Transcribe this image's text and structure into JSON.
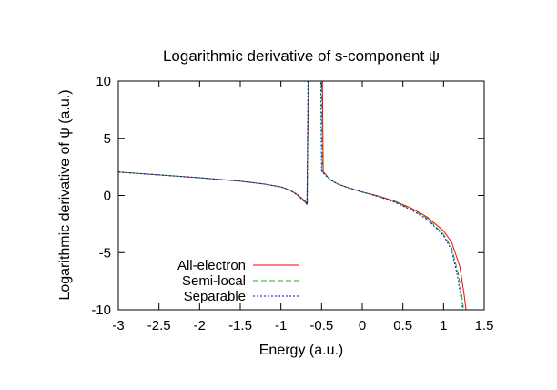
{
  "chart_data": {
    "type": "line",
    "title": "Logarithmic derivative of s-component ψ",
    "xlabel": "Energy (a.u.)",
    "ylabel": "Logarithmic derivative of ψ (a.u.)",
    "xlim": [
      -3,
      1.5
    ],
    "ylim": [
      -10,
      10
    ],
    "x_ticks": [
      -3,
      -2.5,
      -2,
      -1.5,
      -1,
      -0.5,
      0,
      0.5,
      1,
      1.5
    ],
    "y_ticks": [
      -10,
      -5,
      0,
      5,
      10
    ],
    "x_tick_labels": [
      "-3",
      "-2.5",
      "-2",
      "-1.5",
      "-1",
      "-0.5",
      "0",
      "0.5",
      "1",
      "1.5"
    ],
    "y_tick_labels": [
      "-10",
      "-5",
      "0",
      "5",
      "10"
    ],
    "grid": false,
    "legend_position": "bottom-left",
    "series": [
      {
        "name": "All-electron",
        "color": "#ff0000",
        "dash": "solid",
        "segments": [
          [
            [
              -3,
              2.05
            ],
            [
              -2.5,
              1.8
            ],
            [
              -2,
              1.55
            ],
            [
              -1.5,
              1.25
            ],
            [
              -1.2,
              1.0
            ],
            [
              -1.0,
              0.75
            ],
            [
              -0.9,
              0.5
            ],
            [
              -0.8,
              0.1
            ],
            [
              -0.7,
              -0.5
            ],
            [
              -0.68,
              -0.75
            ],
            [
              -0.66,
              10.2
            ]
          ],
          [
            [
              -0.49,
              10.2
            ],
            [
              -0.48,
              2.1
            ],
            [
              -0.4,
              1.4
            ],
            [
              -0.3,
              1.0
            ],
            [
              -0.2,
              0.75
            ],
            [
              0,
              0.3
            ],
            [
              0.2,
              -0.05
            ],
            [
              0.4,
              -0.5
            ],
            [
              0.6,
              -1.1
            ],
            [
              0.8,
              -1.9
            ],
            [
              1.0,
              -3.1
            ],
            [
              1.1,
              -4.1
            ],
            [
              1.2,
              -6.2
            ],
            [
              1.25,
              -8.5
            ],
            [
              1.28,
              -10.2
            ]
          ]
        ]
      },
      {
        "name": "Semi-local",
        "color": "#00c000",
        "dash": "dashed",
        "segments": [
          [
            [
              -3,
              2.05
            ],
            [
              -2.5,
              1.8
            ],
            [
              -2,
              1.55
            ],
            [
              -1.5,
              1.25
            ],
            [
              -1.2,
              1.0
            ],
            [
              -1.0,
              0.75
            ],
            [
              -0.9,
              0.5
            ],
            [
              -0.8,
              0.05
            ],
            [
              -0.7,
              -0.6
            ],
            [
              -0.675,
              -0.8
            ],
            [
              -0.665,
              10.2
            ]
          ],
          [
            [
              -0.5,
              10.2
            ],
            [
              -0.49,
              2.1
            ],
            [
              -0.4,
              1.4
            ],
            [
              -0.3,
              1.0
            ],
            [
              -0.2,
              0.75
            ],
            [
              0,
              0.3
            ],
            [
              0.2,
              -0.1
            ],
            [
              0.4,
              -0.55
            ],
            [
              0.6,
              -1.2
            ],
            [
              0.8,
              -2.0
            ],
            [
              1.0,
              -3.4
            ],
            [
              1.1,
              -4.6
            ],
            [
              1.18,
              -6.8
            ],
            [
              1.23,
              -9.0
            ],
            [
              1.25,
              -10.2
            ]
          ]
        ]
      },
      {
        "name": "Separable",
        "color": "#0000ff",
        "dash": "dotted",
        "segments": [
          [
            [
              -3,
              2.05
            ],
            [
              -2.5,
              1.8
            ],
            [
              -2,
              1.55
            ],
            [
              -1.5,
              1.25
            ],
            [
              -1.2,
              1.0
            ],
            [
              -1.0,
              0.75
            ],
            [
              -0.9,
              0.5
            ],
            [
              -0.8,
              0.05
            ],
            [
              -0.7,
              -0.6
            ],
            [
              -0.68,
              -0.8
            ],
            [
              -0.668,
              10.2
            ]
          ],
          [
            [
              -0.51,
              10.2
            ],
            [
              -0.5,
              2.1
            ],
            [
              -0.4,
              1.4
            ],
            [
              -0.3,
              1.0
            ],
            [
              -0.2,
              0.75
            ],
            [
              0,
              0.3
            ],
            [
              0.2,
              -0.1
            ],
            [
              0.4,
              -0.6
            ],
            [
              0.6,
              -1.25
            ],
            [
              0.8,
              -2.1
            ],
            [
              1.0,
              -3.5
            ],
            [
              1.1,
              -4.8
            ],
            [
              1.17,
              -7.0
            ],
            [
              1.22,
              -9.2
            ],
            [
              1.24,
              -10.2
            ]
          ]
        ]
      }
    ]
  }
}
